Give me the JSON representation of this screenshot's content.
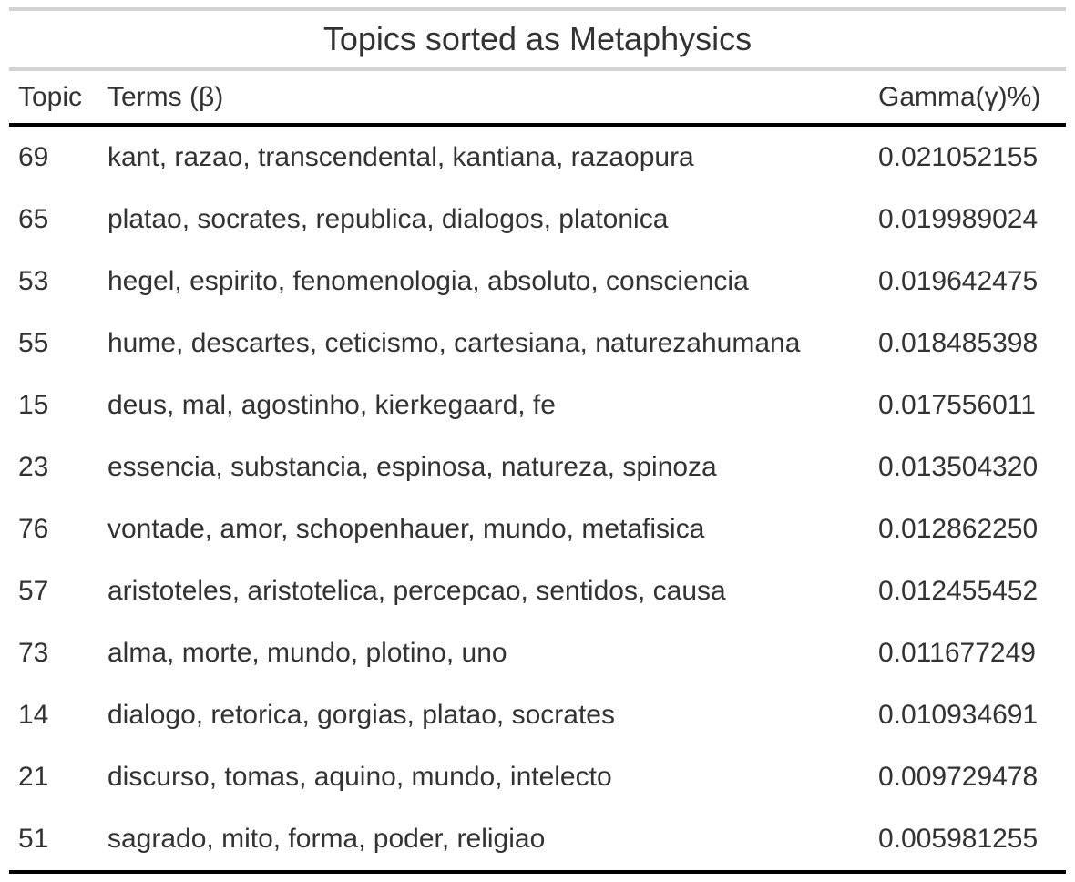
{
  "table": {
    "title": "Topics sorted as Metaphysics",
    "columns": {
      "topic": "Topic",
      "terms": "Terms (β)",
      "gamma": "Gamma(γ)%)"
    },
    "rows": [
      {
        "topic": "69",
        "terms": "kant, razao, transcendental, kantiana, razaopura",
        "gamma": "0.021052155"
      },
      {
        "topic": "65",
        "terms": "platao, socrates, republica, dialogos, platonica",
        "gamma": "0.019989024"
      },
      {
        "topic": "53",
        "terms": "hegel, espirito, fenomenologia, absoluto, consciencia",
        "gamma": "0.019642475"
      },
      {
        "topic": "55",
        "terms": "hume, descartes, ceticismo, cartesiana, naturezahumana",
        "gamma": "0.018485398"
      },
      {
        "topic": "15",
        "terms": "deus, mal, agostinho, kierkegaard, fe",
        "gamma": "0.017556011"
      },
      {
        "topic": "23",
        "terms": "essencia, substancia, espinosa, natureza, spinoza",
        "gamma": "0.013504320"
      },
      {
        "topic": "76",
        "terms": "vontade, amor, schopenhauer, mundo, metafisica",
        "gamma": "0.012862250"
      },
      {
        "topic": "57",
        "terms": "aristoteles, aristotelica, percepcao, sentidos, causa",
        "gamma": "0.012455452"
      },
      {
        "topic": "73",
        "terms": "alma, morte, mundo, plotino, uno",
        "gamma": "0.011677249"
      },
      {
        "topic": "14",
        "terms": "dialogo, retorica, gorgias, platao, socrates",
        "gamma": "0.010934691"
      },
      {
        "topic": "21",
        "terms": "discurso, tomas, aquino, mundo, intelecto",
        "gamma": "0.009729478"
      },
      {
        "topic": "51",
        "terms": "sagrado, mito, forma, poder, religiao",
        "gamma": "0.005981255"
      }
    ]
  }
}
